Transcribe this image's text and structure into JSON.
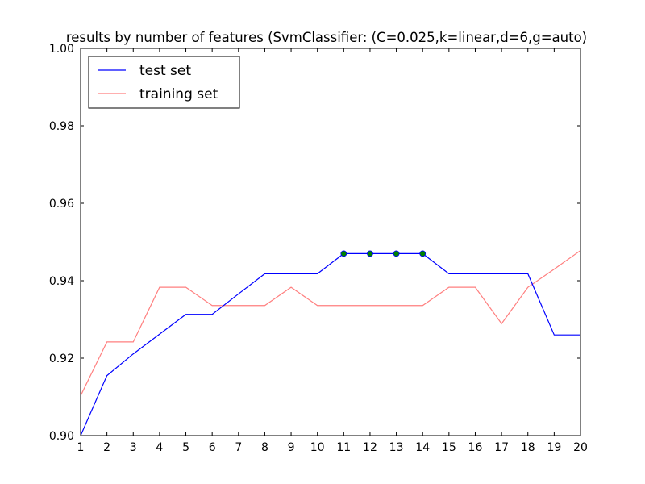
{
  "chart_data": {
    "type": "line",
    "title": "results by number of features (SvmClassifier: (C=0.025,k=linear,d=6,g=auto)",
    "xlabel": "",
    "ylabel": "",
    "xlim": [
      1,
      20
    ],
    "ylim": [
      0.9,
      1.0
    ],
    "x": [
      1,
      2,
      3,
      4,
      5,
      6,
      7,
      8,
      9,
      10,
      11,
      12,
      13,
      14,
      15,
      16,
      17,
      18,
      19,
      20
    ],
    "xticks": [
      "1",
      "2",
      "3",
      "4",
      "5",
      "6",
      "7",
      "8",
      "9",
      "10",
      "11",
      "12",
      "13",
      "14",
      "15",
      "16",
      "17",
      "18",
      "19",
      "20"
    ],
    "yticks": [
      {
        "value": 0.9,
        "label": "0.90"
      },
      {
        "value": 0.92,
        "label": "0.92"
      },
      {
        "value": 0.94,
        "label": "0.94"
      },
      {
        "value": 0.96,
        "label": "0.96"
      },
      {
        "value": 0.98,
        "label": "0.98"
      },
      {
        "value": 1.0,
        "label": "1.00"
      }
    ],
    "grid": false,
    "legend_position": "top-left",
    "series": [
      {
        "name": "test set",
        "color": "#0000ff",
        "values": [
          0.9,
          0.9155,
          0.9211,
          0.9262,
          0.9313,
          0.9313,
          0.9366,
          0.9418,
          0.9418,
          0.9418,
          0.947,
          0.947,
          0.947,
          0.947,
          0.9418,
          0.9418,
          0.9418,
          0.9418,
          0.926,
          0.926
        ]
      },
      {
        "name": "training set",
        "color": "#ff7f7f",
        "values": [
          0.9103,
          0.9242,
          0.9242,
          0.9383,
          0.9383,
          0.9336,
          0.9336,
          0.9336,
          0.9383,
          0.9336,
          0.9336,
          0.9336,
          0.9336,
          0.9336,
          0.9383,
          0.9383,
          0.9289,
          0.9383,
          0.943,
          0.9478
        ]
      }
    ],
    "highlight_points": {
      "color": "#008000",
      "edge_color": "#0000ff",
      "x": [
        11,
        12,
        13,
        14
      ],
      "y": [
        0.947,
        0.947,
        0.947,
        0.947
      ]
    }
  }
}
